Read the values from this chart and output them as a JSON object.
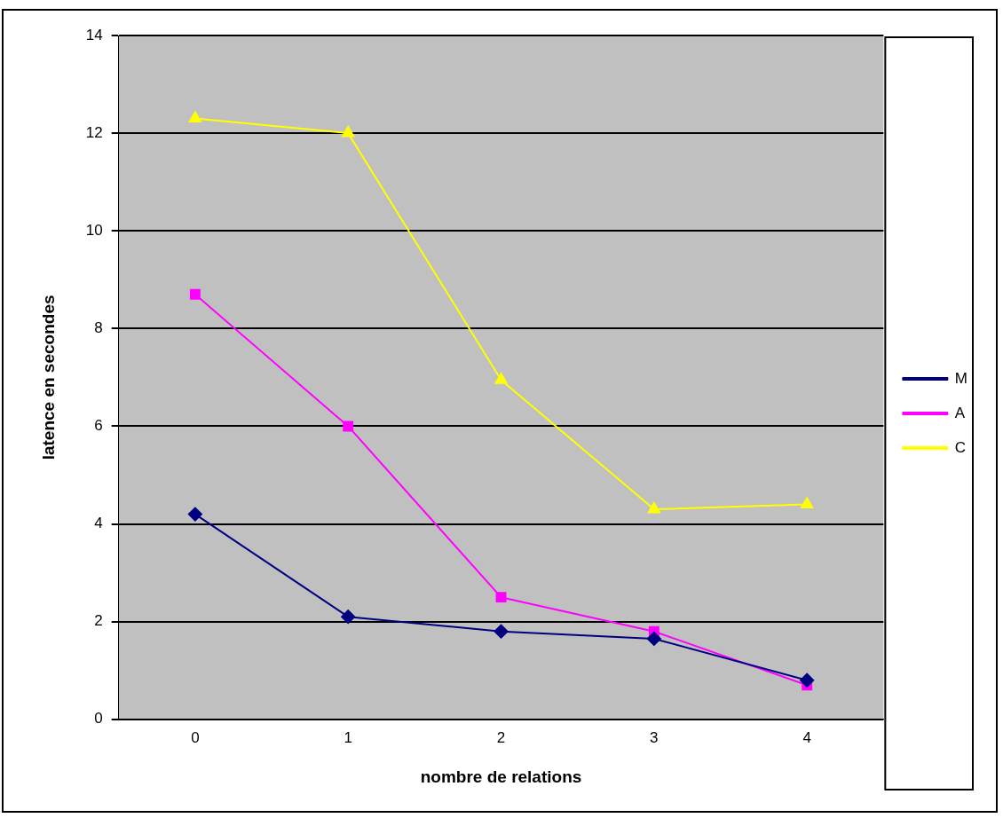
{
  "chart_data": {
    "type": "line",
    "xlabel": "nombre de relations",
    "ylabel": "latence en secondes",
    "categories": [
      "0",
      "1",
      "2",
      "3",
      "4"
    ],
    "series": [
      {
        "name": "M",
        "color": "#000080",
        "marker": "diamond",
        "values": [
          4.2,
          2.1,
          1.8,
          1.65,
          0.8
        ]
      },
      {
        "name": "A",
        "color": "#ff00ff",
        "marker": "square",
        "values": [
          8.7,
          6.0,
          2.5,
          1.8,
          0.7
        ]
      },
      {
        "name": "C",
        "color": "#ffff00",
        "marker": "triangle",
        "values": [
          12.3,
          12.0,
          6.95,
          4.3,
          4.4
        ]
      }
    ],
    "ylim": [
      0,
      14
    ],
    "yticks": [
      0,
      2,
      4,
      6,
      8,
      10,
      12,
      14
    ],
    "grid": "y",
    "legend": "right"
  }
}
